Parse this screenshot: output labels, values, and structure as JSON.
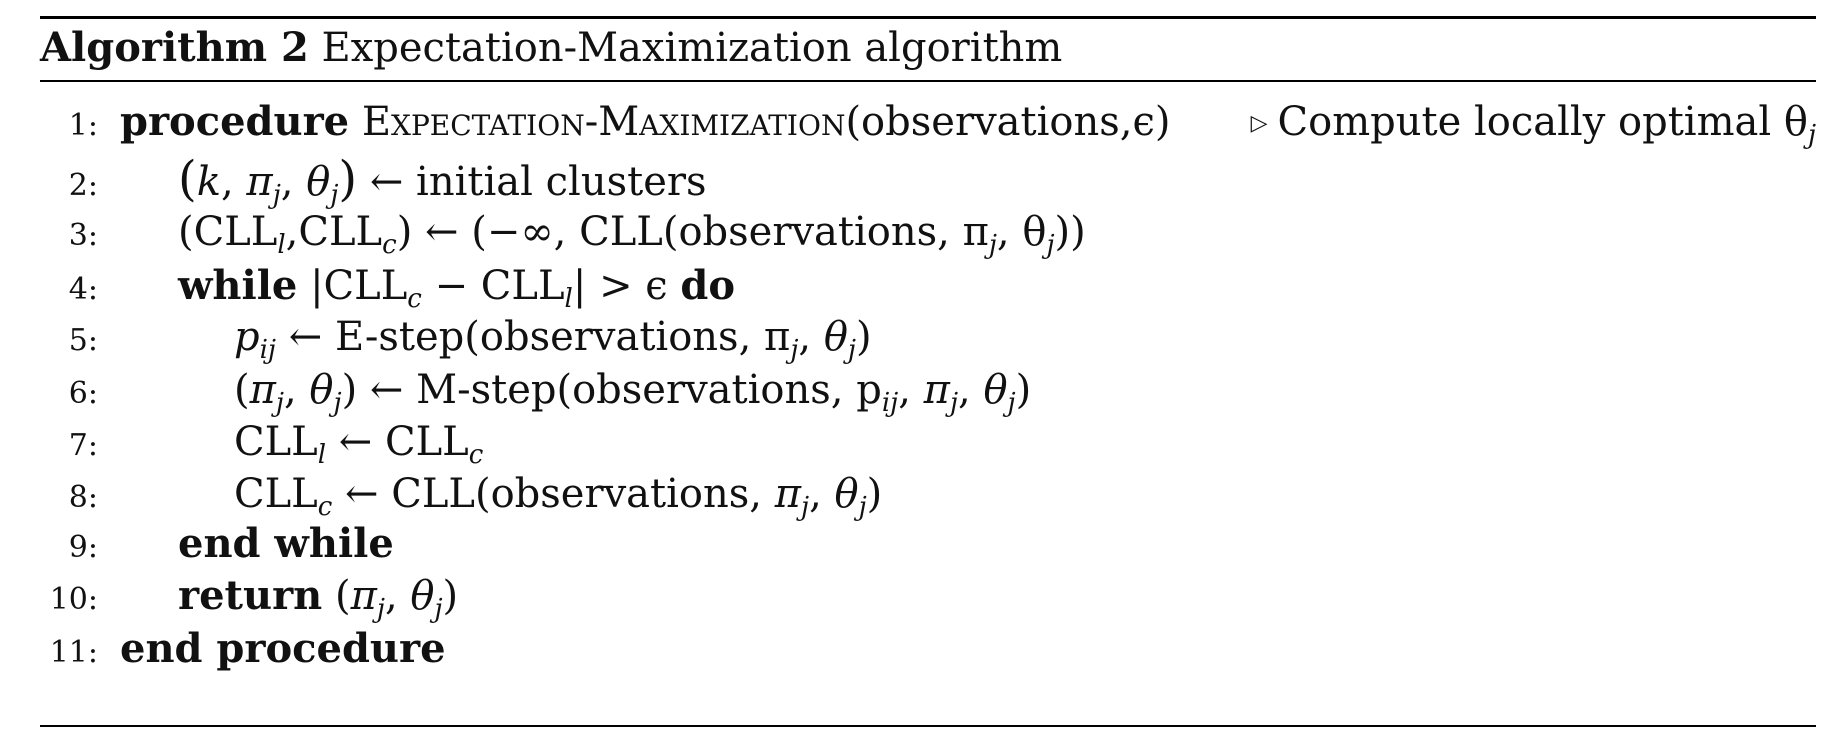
{
  "caption": {
    "label": "Algorithm 2",
    "title": "Expectation-Maximization algorithm"
  },
  "lines": [
    {
      "num": "1:",
      "kw_start": "procedure",
      "name": "Expectation-Maximization",
      "args": "(observations,ϵ)",
      "comment": "Compute locally optimal θ",
      "comment_sub": "j"
    },
    {
      "num": "2:",
      "text": "← initial clusters"
    },
    {
      "num": "3:",
      "text_a": "(CLL",
      "sub_l": "l",
      "text_b": ",CLL",
      "sub_c": "c",
      "text_c": ") ← (−∞, CLL(observations, π",
      "sub_j1": "j",
      "text_d": ", θ",
      "sub_j2": "j",
      "text_e": "))"
    },
    {
      "num": "4:",
      "kw_start": "while",
      "cond_a": "|CLL",
      "sub_c": "c",
      "cond_b": " − CLL",
      "sub_l": "l",
      "cond_c": "| > ϵ",
      "kw_end": "do"
    },
    {
      "num": "5:",
      "text": "← E-step(observations, π"
    },
    {
      "num": "6:",
      "text": "← M-step(observations, p"
    },
    {
      "num": "7:",
      "text": "CLL"
    },
    {
      "num": "8:",
      "text": "CLL"
    },
    {
      "num": "9:",
      "kw": "end while"
    },
    {
      "num": "10:",
      "kw": "return"
    },
    {
      "num": "11:",
      "kw": "end procedure"
    }
  ]
}
